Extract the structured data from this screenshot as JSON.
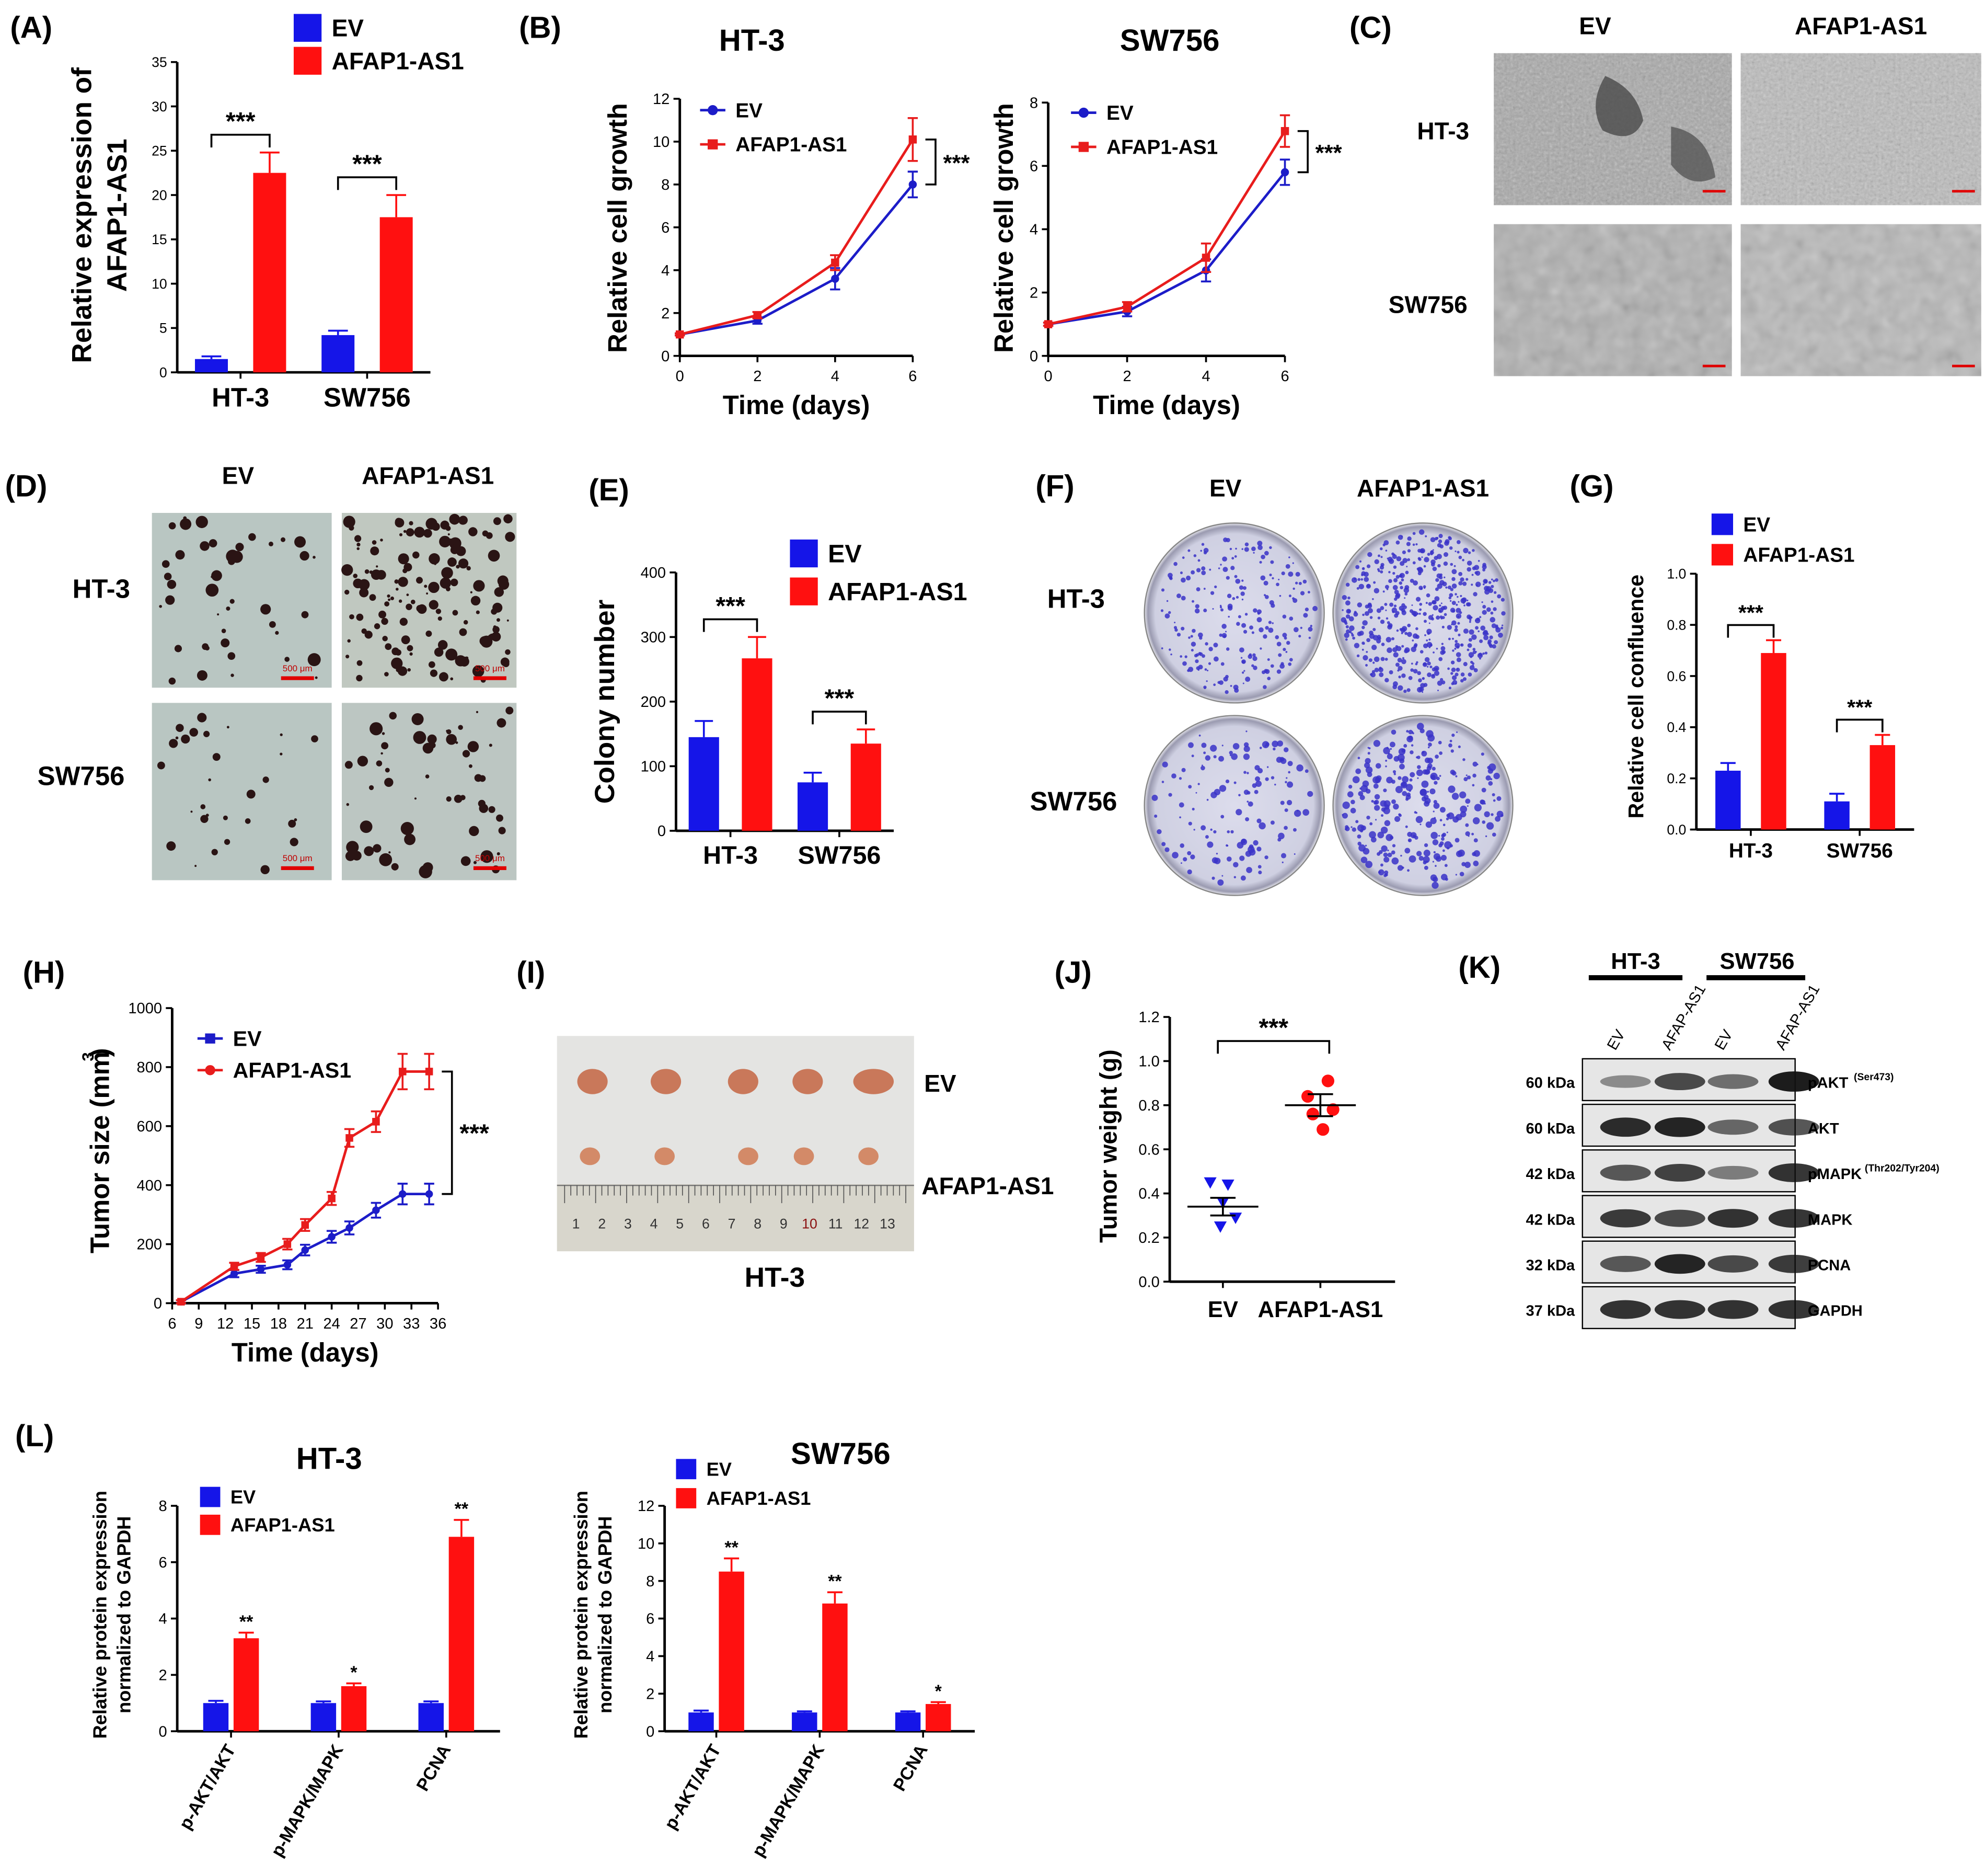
{
  "colors": {
    "ev": "#1515e8",
    "afap": "#ff1010",
    "ev_line": "#1c1cc8",
    "afap_line": "#e81c1c"
  },
  "panels": {
    "A": "(A)",
    "B": "(B)",
    "C": "(C)",
    "D": "(D)",
    "E": "(E)",
    "F": "(F)",
    "G": "(G)",
    "H": "(H)",
    "I": "(I)",
    "J": "(J)",
    "K": "(K)",
    "L": "(L)"
  },
  "images": {
    "C": {
      "col1": "EV",
      "col2": "AFAP1-AS1",
      "row1": "HT-3",
      "row2": "SW756"
    },
    "D": {
      "col1": "EV",
      "col2": "AFAP1-AS1",
      "row1": "HT-3",
      "row2": "SW756",
      "scale": "500 μm"
    },
    "F": {
      "col1": "EV",
      "col2": "AFAP1-AS1",
      "row1": "HT-3",
      "row2": "SW756"
    },
    "I": {
      "row1": "EV",
      "row2": "AFAP1-AS1",
      "caption": "HT-3",
      "ruler": [
        "1",
        "2",
        "3",
        "4",
        "5",
        "6",
        "7",
        "8",
        "9",
        "10",
        "11",
        "12",
        "13"
      ]
    }
  },
  "western": {
    "group1": "HT-3",
    "group2": "SW756",
    "lanes": [
      "EV",
      "AFAP-AS1",
      "EV",
      "AFAP-AS1"
    ],
    "rows": [
      {
        "kda": "60 kDa",
        "label": "pAKT",
        "sup": "(Ser473)"
      },
      {
        "kda": "60 kDa",
        "label": "AKT",
        "sup": ""
      },
      {
        "kda": "42 kDa",
        "label": "pMAPK",
        "sup": "(Thr202/Tyr204)"
      },
      {
        "kda": "42 kDa",
        "label": "MAPK",
        "sup": ""
      },
      {
        "kda": "32 kDa",
        "label": "PCNA",
        "sup": ""
      },
      {
        "kda": "37 kDa",
        "label": "GAPDH",
        "sup": ""
      }
    ]
  },
  "chart_data": [
    {
      "panel": "A",
      "type": "bar",
      "categories": [
        "HT-3",
        "SW756"
      ],
      "series": [
        {
          "name": "EV",
          "values": [
            1.5,
            4.2
          ],
          "errors": [
            0.3,
            0.5
          ]
        },
        {
          "name": "AFAP1-AS1",
          "values": [
            22.5,
            17.5
          ],
          "errors": [
            2.3,
            2.5
          ]
        }
      ],
      "title": "",
      "xlabel": "",
      "ylabel": "Relative expression of AFAP1-AS1",
      "ylim": [
        0,
        35
      ],
      "yticks": [
        "0",
        "5",
        "10",
        "15",
        "20",
        "25",
        "30",
        "35"
      ],
      "significance": [
        "***",
        "***"
      ],
      "legend": "top"
    },
    {
      "panel": "B-left",
      "type": "line",
      "title": "HT-3",
      "x": [
        0,
        2,
        4,
        6
      ],
      "xticks": [
        "0",
        "2",
        "4",
        "6"
      ],
      "xlim": [
        0,
        6
      ],
      "series": [
        {
          "name": "EV",
          "values": [
            1.0,
            1.65,
            3.6,
            8.0
          ],
          "errors": [
            0.05,
            0.15,
            0.5,
            0.6
          ]
        },
        {
          "name": "AFAP1-AS1",
          "values": [
            1.0,
            1.9,
            4.35,
            10.1
          ],
          "errors": [
            0.05,
            0.15,
            0.35,
            1.0
          ]
        }
      ],
      "xlabel": "Time (days)",
      "ylabel": "Relative cell growth",
      "ylim": [
        0,
        12
      ],
      "yticks": [
        "0",
        "2",
        "4",
        "6",
        "8",
        "10",
        "12"
      ],
      "significance": "***",
      "legend": "top-left"
    },
    {
      "panel": "B-right",
      "type": "line",
      "title": "SW756",
      "x": [
        0,
        2,
        4,
        6
      ],
      "xticks": [
        "0",
        "2",
        "4",
        "6"
      ],
      "xlim": [
        0,
        6
      ],
      "series": [
        {
          "name": "EV",
          "values": [
            1.0,
            1.4,
            2.7,
            5.8
          ],
          "errors": [
            0.05,
            0.15,
            0.35,
            0.4
          ]
        },
        {
          "name": "AFAP1-AS1",
          "values": [
            1.0,
            1.55,
            3.1,
            7.1
          ],
          "errors": [
            0.05,
            0.15,
            0.45,
            0.5
          ]
        }
      ],
      "xlabel": "Time (days)",
      "ylabel": "Relative cell growth",
      "ylim": [
        0,
        8
      ],
      "yticks": [
        "0",
        "2",
        "4",
        "6",
        "8"
      ],
      "significance": "***",
      "legend": "top-left"
    },
    {
      "panel": "E",
      "type": "bar",
      "categories": [
        "HT-3",
        "SW756"
      ],
      "series": [
        {
          "name": "EV",
          "values": [
            145,
            75
          ],
          "errors": [
            25,
            15
          ]
        },
        {
          "name": "AFAP1-AS1",
          "values": [
            267,
            135
          ],
          "errors": [
            33,
            22
          ]
        }
      ],
      "title": "",
      "xlabel": "",
      "ylabel": "Colony number",
      "ylim": [
        0,
        400
      ],
      "yticks": [
        "0",
        "100",
        "200",
        "300",
        "400"
      ],
      "significance": [
        "***",
        "***"
      ],
      "legend": "top-right"
    },
    {
      "panel": "G",
      "type": "bar",
      "categories": [
        "HT-3",
        "SW756"
      ],
      "series": [
        {
          "name": "EV",
          "values": [
            0.23,
            0.11
          ],
          "errors": [
            0.03,
            0.03
          ]
        },
        {
          "name": "AFAP1-AS1",
          "values": [
            0.69,
            0.33
          ],
          "errors": [
            0.05,
            0.04
          ]
        }
      ],
      "title": "",
      "xlabel": "",
      "ylabel": "Relative cell confluence",
      "ylim": [
        0,
        1.0
      ],
      "yticks": [
        "0.0",
        "0.2",
        "0.4",
        "0.6",
        "0.8",
        "1.0"
      ],
      "significance": [
        "***",
        "***"
      ],
      "legend": "top"
    },
    {
      "panel": "H",
      "type": "line",
      "x": [
        7,
        13,
        16,
        19,
        21,
        24,
        26,
        29,
        32,
        35
      ],
      "xticks": [
        "6",
        "9",
        "12",
        "15",
        "18",
        "21",
        "24",
        "27",
        "30",
        "33",
        "36"
      ],
      "xlim": [
        6,
        36
      ],
      "series": [
        {
          "name": "EV",
          "values": [
            5,
            100,
            115,
            130,
            180,
            225,
            255,
            315,
            370,
            370
          ],
          "errors": [
            5,
            12,
            12,
            15,
            18,
            20,
            22,
            25,
            35,
            35
          ]
        },
        {
          "name": "AFAP1-AS1",
          "values": [
            5,
            125,
            155,
            200,
            265,
            355,
            560,
            615,
            785,
            785
          ],
          "errors": [
            5,
            12,
            15,
            18,
            20,
            22,
            30,
            35,
            60,
            60
          ]
        }
      ],
      "xlabel": "Time (days)",
      "ylabel": "Tumor size (mm3)",
      "ylim": [
        0,
        1000
      ],
      "yticks": [
        "0",
        "200",
        "400",
        "600",
        "800",
        "1000"
      ],
      "significance": "***",
      "legend": "top-left"
    },
    {
      "panel": "J",
      "type": "scatter",
      "categories": [
        "EV",
        "AFAP1-AS1"
      ],
      "series": [
        {
          "name": "EV",
          "values": [
            0.45,
            0.44,
            0.36,
            0.29,
            0.25
          ],
          "mean": 0.34,
          "sem": 0.04
        },
        {
          "name": "AFAP1-AS1",
          "values": [
            0.91,
            0.84,
            0.78,
            0.76,
            0.69
          ],
          "mean": 0.8,
          "sem": 0.05
        }
      ],
      "xlabel": "",
      "ylabel": "Tumor weight (g)",
      "ylim": [
        0,
        1.2
      ],
      "yticks": [
        "0.0",
        "0.2",
        "0.4",
        "0.6",
        "0.8",
        "1.0",
        "1.2"
      ],
      "significance": "***"
    },
    {
      "panel": "L-left",
      "type": "bar",
      "title": "HT-3",
      "categories": [
        "p-AKT/AKT",
        "p-MAPK/MAPK",
        "PCNA"
      ],
      "series": [
        {
          "name": "EV",
          "values": [
            1.0,
            1.0,
            1.0
          ],
          "errors": [
            0.08,
            0.06,
            0.06
          ]
        },
        {
          "name": "AFAP1-AS1",
          "values": [
            3.3,
            1.6,
            6.9
          ],
          "errors": [
            0.2,
            0.1,
            0.6
          ]
        }
      ],
      "xlabel": "",
      "ylabel": "Relative protein expression normalized to GAPDH",
      "ylim": [
        0,
        8
      ],
      "yticks": [
        "0",
        "2",
        "4",
        "6",
        "8"
      ],
      "significance": [
        "**",
        "*",
        "**"
      ],
      "legend": "top-left"
    },
    {
      "panel": "L-right",
      "type": "bar",
      "title": "SW756",
      "categories": [
        "p-AKT/AKT",
        "p-MAPK/MAPK",
        "PCNA"
      ],
      "series": [
        {
          "name": "EV",
          "values": [
            1.0,
            1.0,
            1.0
          ],
          "errors": [
            0.1,
            0.06,
            0.06
          ]
        },
        {
          "name": "AFAP1-AS1",
          "values": [
            8.5,
            6.8,
            1.45
          ],
          "errors": [
            0.7,
            0.6,
            0.1
          ]
        }
      ],
      "xlabel": "",
      "ylabel": "Relative protein expression normalized to GAPDH",
      "ylim": [
        0,
        12
      ],
      "yticks": [
        "0",
        "2",
        "4",
        "6",
        "8",
        "10",
        "12"
      ],
      "significance": [
        "**",
        "**",
        "*"
      ],
      "legend": "top-left"
    }
  ]
}
